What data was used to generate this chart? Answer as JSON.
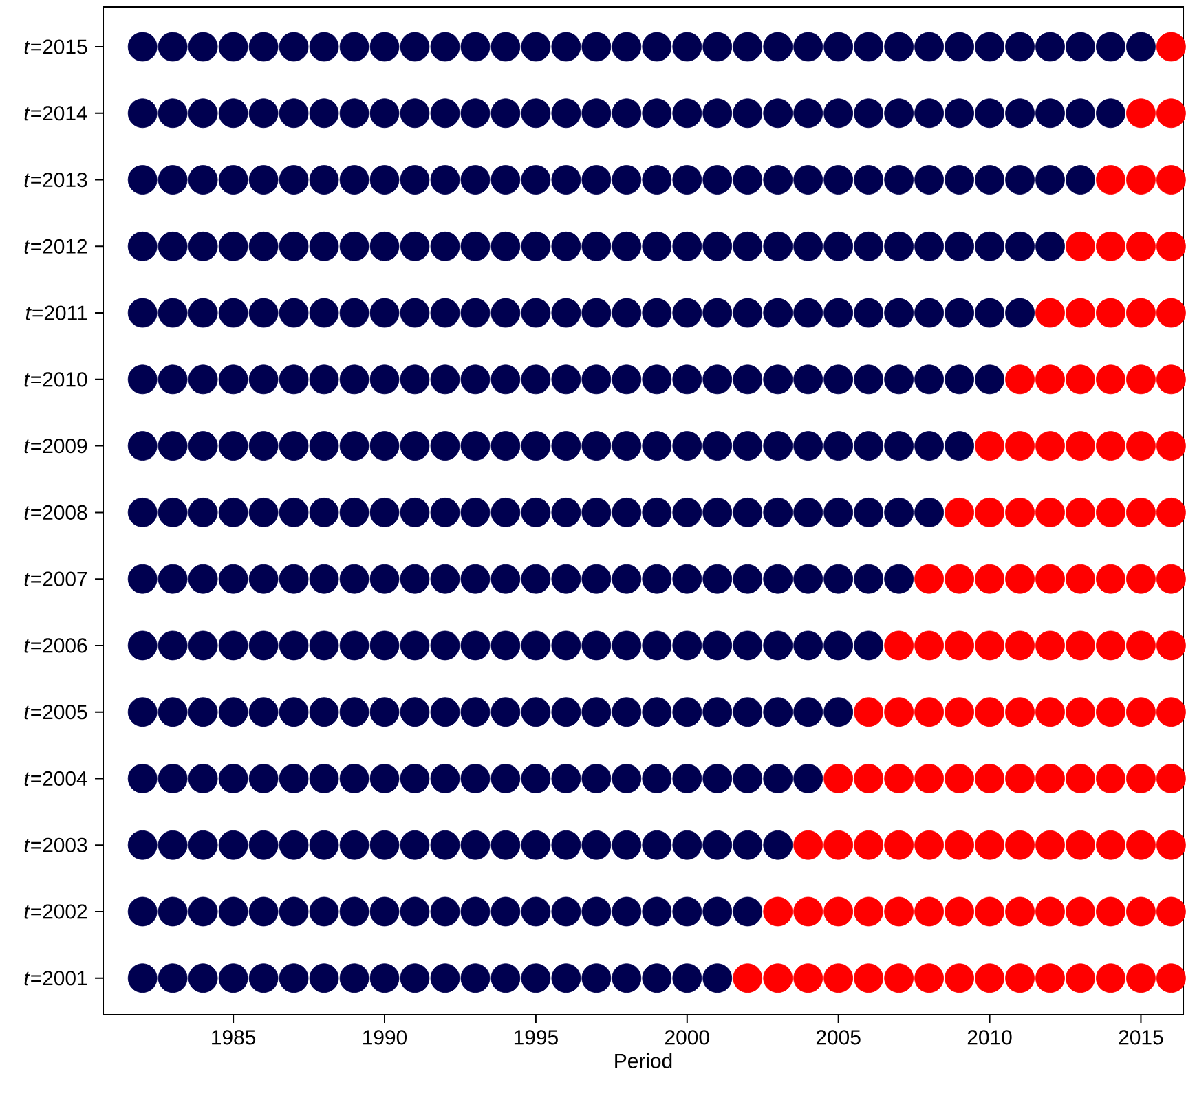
{
  "chart_data": {
    "type": "scatter",
    "xlabel": "Period",
    "marker": "circle",
    "xlim": [
      1980.7,
      2016.4
    ],
    "xticks": [
      1985,
      1990,
      1995,
      2000,
      2005,
      2010,
      2015
    ],
    "ylim": [
      2000.45,
      2015.6
    ],
    "yticks": [
      {
        "value": 2001,
        "label": "*t*=2001"
      },
      {
        "value": 2002,
        "label": "*t*=2002"
      },
      {
        "value": 2003,
        "label": "*t*=2003"
      },
      {
        "value": 2004,
        "label": "*t*=2004"
      },
      {
        "value": 2005,
        "label": "*t*=2005"
      },
      {
        "value": 2006,
        "label": "*t*=2006"
      },
      {
        "value": 2007,
        "label": "*t*=2007"
      },
      {
        "value": 2008,
        "label": "*t*=2008"
      },
      {
        "value": 2009,
        "label": "*t*=2009"
      },
      {
        "value": 2010,
        "label": "*t*=2010"
      },
      {
        "value": 2011,
        "label": "*t*=2011"
      },
      {
        "value": 2012,
        "label": "*t*=2012"
      },
      {
        "value": 2013,
        "label": "*t*=2013"
      },
      {
        "value": 2014,
        "label": "*t*=2014"
      },
      {
        "value": 2015,
        "label": "*t*=2015"
      }
    ],
    "series": [
      {
        "color": "#000050",
        "x": [
          1982,
          1983,
          1984,
          1985,
          1986,
          1987,
          1988,
          1989,
          1990,
          1991,
          1992,
          1993,
          1994,
          1995,
          1996,
          1997,
          1998,
          1999,
          2000,
          2001
        ],
        "values": [
          2001,
          2001,
          2001,
          2001,
          2001,
          2001,
          2001,
          2001,
          2001,
          2001,
          2001,
          2001,
          2001,
          2001,
          2001,
          2001,
          2001,
          2001,
          2001,
          2001
        ]
      },
      {
        "color": "#ff0000",
        "x": [
          2002,
          2003,
          2004,
          2005,
          2006,
          2007,
          2008,
          2009,
          2010,
          2011,
          2012,
          2013,
          2014,
          2015,
          2016
        ],
        "values": [
          2001,
          2001,
          2001,
          2001,
          2001,
          2001,
          2001,
          2001,
          2001,
          2001,
          2001,
          2001,
          2001,
          2001,
          2001
        ]
      },
      {
        "color": "#000050",
        "x": [
          1982,
          1983,
          1984,
          1985,
          1986,
          1987,
          1988,
          1989,
          1990,
          1991,
          1992,
          1993,
          1994,
          1995,
          1996,
          1997,
          1998,
          1999,
          2000,
          2001,
          2002
        ],
        "values": [
          2002,
          2002,
          2002,
          2002,
          2002,
          2002,
          2002,
          2002,
          2002,
          2002,
          2002,
          2002,
          2002,
          2002,
          2002,
          2002,
          2002,
          2002,
          2002,
          2002,
          2002
        ]
      },
      {
        "color": "#ff0000",
        "x": [
          2003,
          2004,
          2005,
          2006,
          2007,
          2008,
          2009,
          2010,
          2011,
          2012,
          2013,
          2014,
          2015,
          2016
        ],
        "values": [
          2002,
          2002,
          2002,
          2002,
          2002,
          2002,
          2002,
          2002,
          2002,
          2002,
          2002,
          2002,
          2002,
          2002
        ]
      },
      {
        "color": "#000050",
        "x": [
          1982,
          1983,
          1984,
          1985,
          1986,
          1987,
          1988,
          1989,
          1990,
          1991,
          1992,
          1993,
          1994,
          1995,
          1996,
          1997,
          1998,
          1999,
          2000,
          2001,
          2002,
          2003
        ],
        "values": [
          2003,
          2003,
          2003,
          2003,
          2003,
          2003,
          2003,
          2003,
          2003,
          2003,
          2003,
          2003,
          2003,
          2003,
          2003,
          2003,
          2003,
          2003,
          2003,
          2003,
          2003,
          2003
        ]
      },
      {
        "color": "#ff0000",
        "x": [
          2004,
          2005,
          2006,
          2007,
          2008,
          2009,
          2010,
          2011,
          2012,
          2013,
          2014,
          2015,
          2016
        ],
        "values": [
          2003,
          2003,
          2003,
          2003,
          2003,
          2003,
          2003,
          2003,
          2003,
          2003,
          2003,
          2003,
          2003
        ]
      },
      {
        "color": "#000050",
        "x": [
          1982,
          1983,
          1984,
          1985,
          1986,
          1987,
          1988,
          1989,
          1990,
          1991,
          1992,
          1993,
          1994,
          1995,
          1996,
          1997,
          1998,
          1999,
          2000,
          2001,
          2002,
          2003,
          2004
        ],
        "values": [
          2004,
          2004,
          2004,
          2004,
          2004,
          2004,
          2004,
          2004,
          2004,
          2004,
          2004,
          2004,
          2004,
          2004,
          2004,
          2004,
          2004,
          2004,
          2004,
          2004,
          2004,
          2004,
          2004
        ]
      },
      {
        "color": "#ff0000",
        "x": [
          2005,
          2006,
          2007,
          2008,
          2009,
          2010,
          2011,
          2012,
          2013,
          2014,
          2015,
          2016
        ],
        "values": [
          2004,
          2004,
          2004,
          2004,
          2004,
          2004,
          2004,
          2004,
          2004,
          2004,
          2004,
          2004
        ]
      },
      {
        "color": "#000050",
        "x": [
          1982,
          1983,
          1984,
          1985,
          1986,
          1987,
          1988,
          1989,
          1990,
          1991,
          1992,
          1993,
          1994,
          1995,
          1996,
          1997,
          1998,
          1999,
          2000,
          2001,
          2002,
          2003,
          2004,
          2005
        ],
        "values": [
          2005,
          2005,
          2005,
          2005,
          2005,
          2005,
          2005,
          2005,
          2005,
          2005,
          2005,
          2005,
          2005,
          2005,
          2005,
          2005,
          2005,
          2005,
          2005,
          2005,
          2005,
          2005,
          2005,
          2005
        ]
      },
      {
        "color": "#ff0000",
        "x": [
          2006,
          2007,
          2008,
          2009,
          2010,
          2011,
          2012,
          2013,
          2014,
          2015,
          2016
        ],
        "values": [
          2005,
          2005,
          2005,
          2005,
          2005,
          2005,
          2005,
          2005,
          2005,
          2005,
          2005
        ]
      },
      {
        "color": "#000050",
        "x": [
          1982,
          1983,
          1984,
          1985,
          1986,
          1987,
          1988,
          1989,
          1990,
          1991,
          1992,
          1993,
          1994,
          1995,
          1996,
          1997,
          1998,
          1999,
          2000,
          2001,
          2002,
          2003,
          2004,
          2005,
          2006
        ],
        "values": [
          2006,
          2006,
          2006,
          2006,
          2006,
          2006,
          2006,
          2006,
          2006,
          2006,
          2006,
          2006,
          2006,
          2006,
          2006,
          2006,
          2006,
          2006,
          2006,
          2006,
          2006,
          2006,
          2006,
          2006,
          2006
        ]
      },
      {
        "color": "#ff0000",
        "x": [
          2007,
          2008,
          2009,
          2010,
          2011,
          2012,
          2013,
          2014,
          2015,
          2016
        ],
        "values": [
          2006,
          2006,
          2006,
          2006,
          2006,
          2006,
          2006,
          2006,
          2006,
          2006
        ]
      },
      {
        "color": "#000050",
        "x": [
          1982,
          1983,
          1984,
          1985,
          1986,
          1987,
          1988,
          1989,
          1990,
          1991,
          1992,
          1993,
          1994,
          1995,
          1996,
          1997,
          1998,
          1999,
          2000,
          2001,
          2002,
          2003,
          2004,
          2005,
          2006,
          2007
        ],
        "values": [
          2007,
          2007,
          2007,
          2007,
          2007,
          2007,
          2007,
          2007,
          2007,
          2007,
          2007,
          2007,
          2007,
          2007,
          2007,
          2007,
          2007,
          2007,
          2007,
          2007,
          2007,
          2007,
          2007,
          2007,
          2007,
          2007
        ]
      },
      {
        "color": "#ff0000",
        "x": [
          2008,
          2009,
          2010,
          2011,
          2012,
          2013,
          2014,
          2015,
          2016
        ],
        "values": [
          2007,
          2007,
          2007,
          2007,
          2007,
          2007,
          2007,
          2007,
          2007
        ]
      },
      {
        "color": "#000050",
        "x": [
          1982,
          1983,
          1984,
          1985,
          1986,
          1987,
          1988,
          1989,
          1990,
          1991,
          1992,
          1993,
          1994,
          1995,
          1996,
          1997,
          1998,
          1999,
          2000,
          2001,
          2002,
          2003,
          2004,
          2005,
          2006,
          2007,
          2008
        ],
        "values": [
          2008,
          2008,
          2008,
          2008,
          2008,
          2008,
          2008,
          2008,
          2008,
          2008,
          2008,
          2008,
          2008,
          2008,
          2008,
          2008,
          2008,
          2008,
          2008,
          2008,
          2008,
          2008,
          2008,
          2008,
          2008,
          2008,
          2008
        ]
      },
      {
        "color": "#ff0000",
        "x": [
          2009,
          2010,
          2011,
          2012,
          2013,
          2014,
          2015,
          2016
        ],
        "values": [
          2008,
          2008,
          2008,
          2008,
          2008,
          2008,
          2008,
          2008
        ]
      },
      {
        "color": "#000050",
        "x": [
          1982,
          1983,
          1984,
          1985,
          1986,
          1987,
          1988,
          1989,
          1990,
          1991,
          1992,
          1993,
          1994,
          1995,
          1996,
          1997,
          1998,
          1999,
          2000,
          2001,
          2002,
          2003,
          2004,
          2005,
          2006,
          2007,
          2008,
          2009
        ],
        "values": [
          2009,
          2009,
          2009,
          2009,
          2009,
          2009,
          2009,
          2009,
          2009,
          2009,
          2009,
          2009,
          2009,
          2009,
          2009,
          2009,
          2009,
          2009,
          2009,
          2009,
          2009,
          2009,
          2009,
          2009,
          2009,
          2009,
          2009,
          2009
        ]
      },
      {
        "color": "#ff0000",
        "x": [
          2010,
          2011,
          2012,
          2013,
          2014,
          2015,
          2016
        ],
        "values": [
          2009,
          2009,
          2009,
          2009,
          2009,
          2009,
          2009
        ]
      },
      {
        "color": "#000050",
        "x": [
          1982,
          1983,
          1984,
          1985,
          1986,
          1987,
          1988,
          1989,
          1990,
          1991,
          1992,
          1993,
          1994,
          1995,
          1996,
          1997,
          1998,
          1999,
          2000,
          2001,
          2002,
          2003,
          2004,
          2005,
          2006,
          2007,
          2008,
          2009,
          2010
        ],
        "values": [
          2010,
          2010,
          2010,
          2010,
          2010,
          2010,
          2010,
          2010,
          2010,
          2010,
          2010,
          2010,
          2010,
          2010,
          2010,
          2010,
          2010,
          2010,
          2010,
          2010,
          2010,
          2010,
          2010,
          2010,
          2010,
          2010,
          2010,
          2010,
          2010
        ]
      },
      {
        "color": "#ff0000",
        "x": [
          2011,
          2012,
          2013,
          2014,
          2015,
          2016
        ],
        "values": [
          2010,
          2010,
          2010,
          2010,
          2010,
          2010
        ]
      },
      {
        "color": "#000050",
        "x": [
          1982,
          1983,
          1984,
          1985,
          1986,
          1987,
          1988,
          1989,
          1990,
          1991,
          1992,
          1993,
          1994,
          1995,
          1996,
          1997,
          1998,
          1999,
          2000,
          2001,
          2002,
          2003,
          2004,
          2005,
          2006,
          2007,
          2008,
          2009,
          2010,
          2011
        ],
        "values": [
          2011,
          2011,
          2011,
          2011,
          2011,
          2011,
          2011,
          2011,
          2011,
          2011,
          2011,
          2011,
          2011,
          2011,
          2011,
          2011,
          2011,
          2011,
          2011,
          2011,
          2011,
          2011,
          2011,
          2011,
          2011,
          2011,
          2011,
          2011,
          2011,
          2011
        ]
      },
      {
        "color": "#ff0000",
        "x": [
          2012,
          2013,
          2014,
          2015,
          2016
        ],
        "values": [
          2011,
          2011,
          2011,
          2011,
          2011
        ]
      },
      {
        "color": "#000050",
        "x": [
          1982,
          1983,
          1984,
          1985,
          1986,
          1987,
          1988,
          1989,
          1990,
          1991,
          1992,
          1993,
          1994,
          1995,
          1996,
          1997,
          1998,
          1999,
          2000,
          2001,
          2002,
          2003,
          2004,
          2005,
          2006,
          2007,
          2008,
          2009,
          2010,
          2011,
          2012
        ],
        "values": [
          2012,
          2012,
          2012,
          2012,
          2012,
          2012,
          2012,
          2012,
          2012,
          2012,
          2012,
          2012,
          2012,
          2012,
          2012,
          2012,
          2012,
          2012,
          2012,
          2012,
          2012,
          2012,
          2012,
          2012,
          2012,
          2012,
          2012,
          2012,
          2012,
          2012,
          2012
        ]
      },
      {
        "color": "#ff0000",
        "x": [
          2013,
          2014,
          2015,
          2016
        ],
        "values": [
          2012,
          2012,
          2012,
          2012
        ]
      },
      {
        "color": "#000050",
        "x": [
          1982,
          1983,
          1984,
          1985,
          1986,
          1987,
          1988,
          1989,
          1990,
          1991,
          1992,
          1993,
          1994,
          1995,
          1996,
          1997,
          1998,
          1999,
          2000,
          2001,
          2002,
          2003,
          2004,
          2005,
          2006,
          2007,
          2008,
          2009,
          2010,
          2011,
          2012,
          2013
        ],
        "values": [
          2013,
          2013,
          2013,
          2013,
          2013,
          2013,
          2013,
          2013,
          2013,
          2013,
          2013,
          2013,
          2013,
          2013,
          2013,
          2013,
          2013,
          2013,
          2013,
          2013,
          2013,
          2013,
          2013,
          2013,
          2013,
          2013,
          2013,
          2013,
          2013,
          2013,
          2013,
          2013
        ]
      },
      {
        "color": "#ff0000",
        "x": [
          2014,
          2015,
          2016
        ],
        "values": [
          2013,
          2013,
          2013
        ]
      },
      {
        "color": "#000050",
        "x": [
          1982,
          1983,
          1984,
          1985,
          1986,
          1987,
          1988,
          1989,
          1990,
          1991,
          1992,
          1993,
          1994,
          1995,
          1996,
          1997,
          1998,
          1999,
          2000,
          2001,
          2002,
          2003,
          2004,
          2005,
          2006,
          2007,
          2008,
          2009,
          2010,
          2011,
          2012,
          2013,
          2014
        ],
        "values": [
          2014,
          2014,
          2014,
          2014,
          2014,
          2014,
          2014,
          2014,
          2014,
          2014,
          2014,
          2014,
          2014,
          2014,
          2014,
          2014,
          2014,
          2014,
          2014,
          2014,
          2014,
          2014,
          2014,
          2014,
          2014,
          2014,
          2014,
          2014,
          2014,
          2014,
          2014,
          2014,
          2014
        ]
      },
      {
        "color": "#ff0000",
        "x": [
          2015,
          2016
        ],
        "values": [
          2014,
          2014
        ]
      },
      {
        "color": "#000050",
        "x": [
          1982,
          1983,
          1984,
          1985,
          1986,
          1987,
          1988,
          1989,
          1990,
          1991,
          1992,
          1993,
          1994,
          1995,
          1996,
          1997,
          1998,
          1999,
          2000,
          2001,
          2002,
          2003,
          2004,
          2005,
          2006,
          2007,
          2008,
          2009,
          2010,
          2011,
          2012,
          2013,
          2014,
          2015
        ],
        "values": [
          2015,
          2015,
          2015,
          2015,
          2015,
          2015,
          2015,
          2015,
          2015,
          2015,
          2015,
          2015,
          2015,
          2015,
          2015,
          2015,
          2015,
          2015,
          2015,
          2015,
          2015,
          2015,
          2015,
          2015,
          2015,
          2015,
          2015,
          2015,
          2015,
          2015,
          2015,
          2015,
          2015,
          2015
        ]
      },
      {
        "color": "#ff0000",
        "x": [
          2016
        ],
        "values": [
          2015
        ]
      }
    ]
  }
}
